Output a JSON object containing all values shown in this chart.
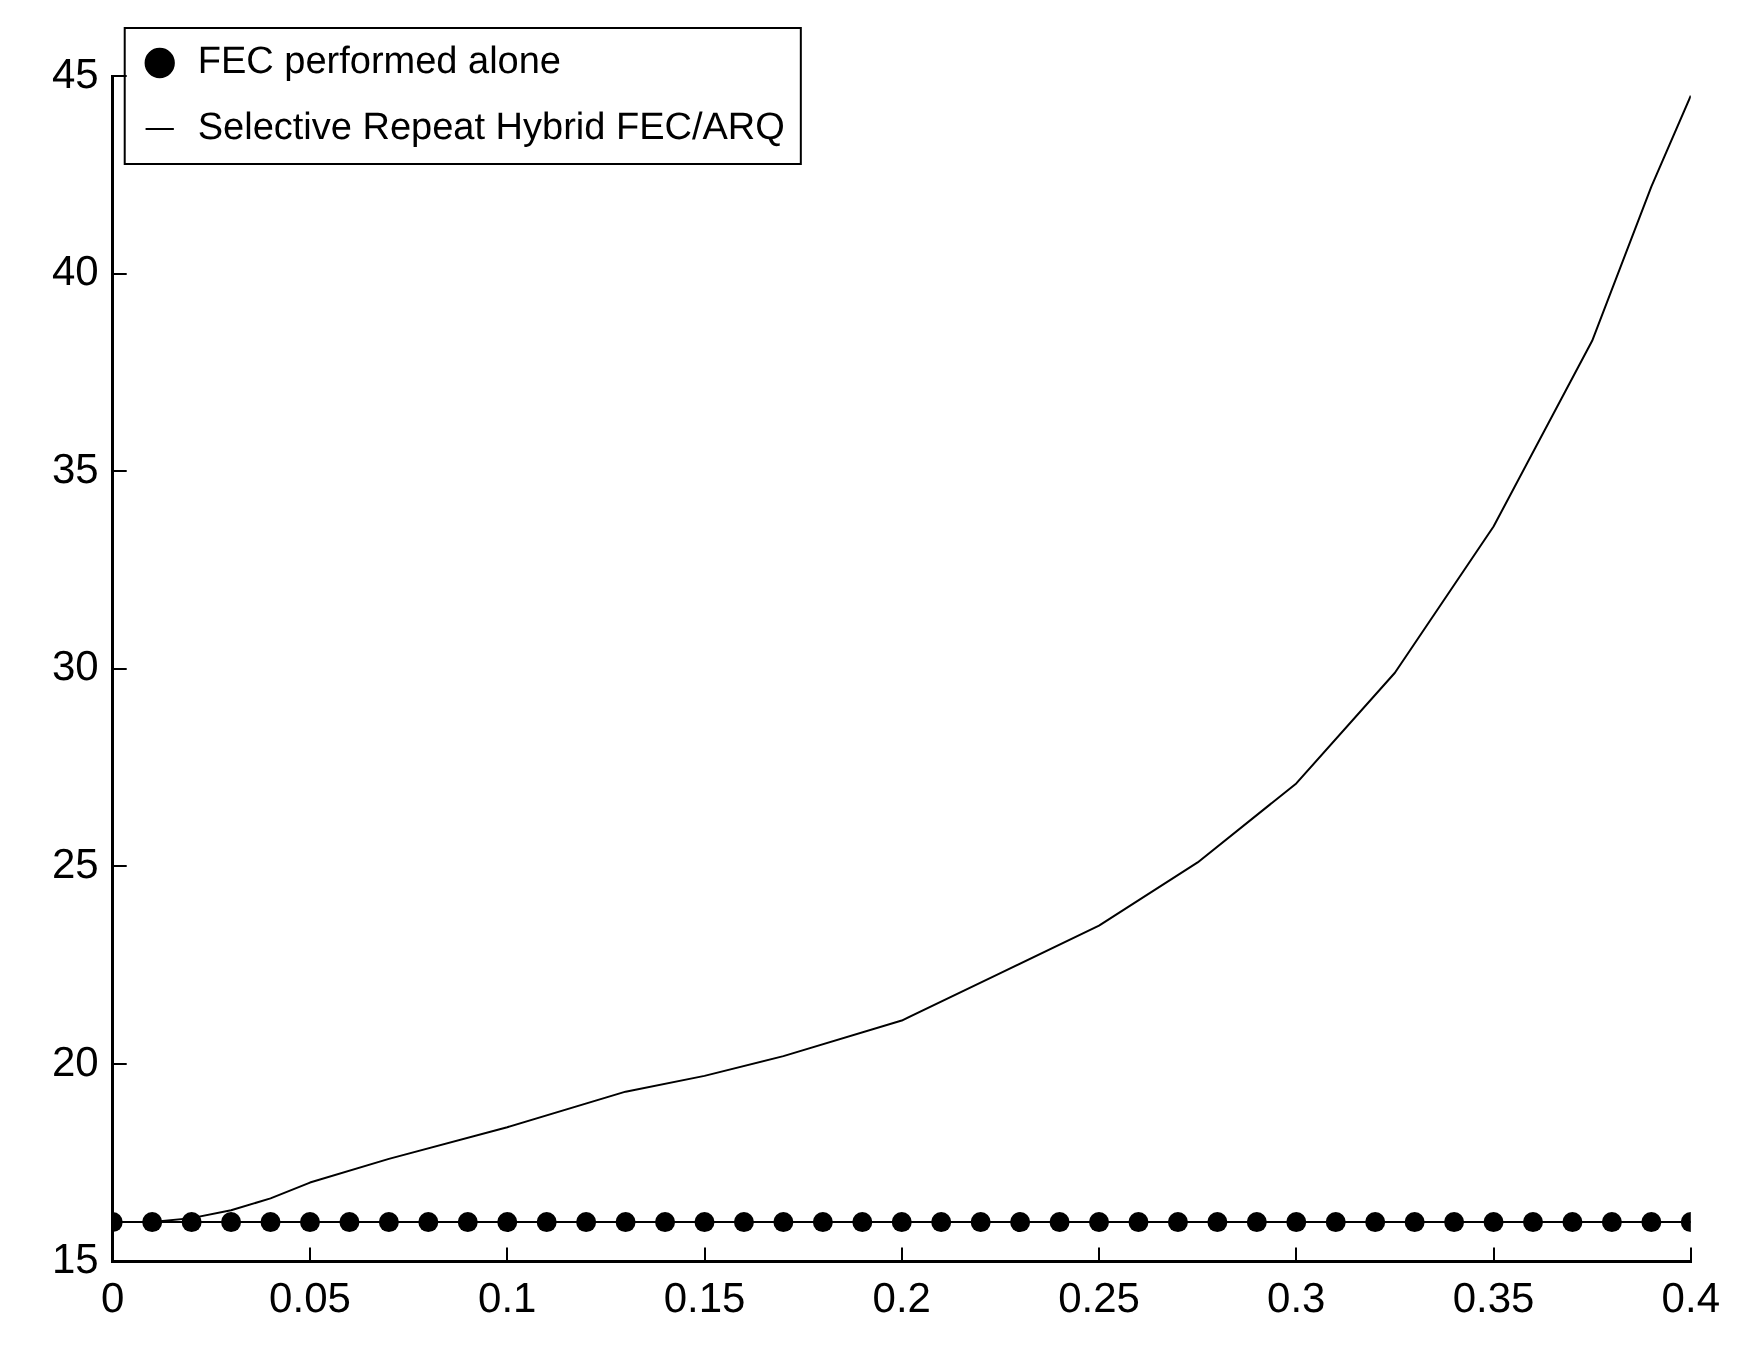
{
  "chart_data": {
    "type": "line",
    "xlim": [
      0,
      0.4
    ],
    "xticks": [
      0,
      0.05,
      0.1,
      0.15,
      0.2,
      0.25,
      0.3,
      0.35,
      0.4
    ],
    "ylim": [
      15,
      45
    ],
    "yticks": [
      15,
      20,
      25,
      30,
      35,
      40,
      45
    ],
    "grid": false,
    "legend": "top left",
    "series": [
      {
        "name": "FEC performed alone",
        "color": "#000000",
        "marker": "circle",
        "x": [
          0,
          0.01,
          0.02,
          0.03,
          0.04,
          0.05,
          0.06,
          0.07,
          0.08,
          0.09,
          0.1,
          0.11,
          0.12,
          0.13,
          0.14,
          0.15,
          0.16,
          0.17,
          0.18,
          0.19,
          0.2,
          0.21,
          0.22,
          0.23,
          0.24,
          0.25,
          0.26,
          0.27,
          0.28,
          0.29,
          0.3,
          0.31,
          0.32,
          0.33,
          0.34,
          0.35,
          0.36,
          0.37,
          0.38,
          0.39,
          0.4
        ],
        "values": [
          16,
          16,
          16,
          16,
          16,
          16,
          16,
          16,
          16,
          16,
          16,
          16,
          16,
          16,
          16,
          16,
          16,
          16,
          16,
          16,
          16,
          16,
          16,
          16,
          16,
          16,
          16,
          16,
          16,
          16,
          16,
          16,
          16,
          16,
          16,
          16,
          16,
          16,
          16,
          16,
          16
        ]
      },
      {
        "name": "Selective Repeat Hybrid FEC/ARQ",
        "color": "#000000",
        "marker": "none",
        "x": [
          0,
          0.01,
          0.02,
          0.03,
          0.04,
          0.05,
          0.07,
          0.1,
          0.13,
          0.15,
          0.17,
          0.2,
          0.225,
          0.25,
          0.275,
          0.3,
          0.325,
          0.35,
          0.375,
          0.39,
          0.4
        ],
        "values": [
          16.0,
          16.0,
          16.1,
          16.3,
          16.6,
          17.0,
          17.6,
          18.4,
          19.3,
          19.7,
          20.2,
          21.1,
          22.3,
          23.5,
          25.1,
          27.1,
          29.9,
          33.6,
          38.3,
          42.2,
          44.5
        ]
      }
    ]
  }
}
